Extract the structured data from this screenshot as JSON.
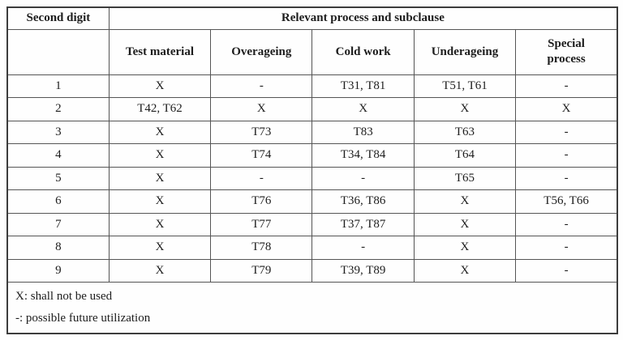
{
  "table": {
    "corner_header": "Second digit",
    "group_header": "Relevant process and subclause",
    "columns": [
      "Test material",
      "Overageing",
      "Cold work",
      "Underageing",
      "Special process"
    ],
    "rows": [
      {
        "digit": "1",
        "cells": [
          "X",
          "-",
          "T31, T81",
          "T51, T61",
          "-"
        ]
      },
      {
        "digit": "2",
        "cells": [
          "T42, T62",
          "X",
          "X",
          "X",
          "X"
        ]
      },
      {
        "digit": "3",
        "cells": [
          "X",
          "T73",
          "T83",
          "T63",
          "-"
        ]
      },
      {
        "digit": "4",
        "cells": [
          "X",
          "T74",
          "T34, T84",
          "T64",
          "-"
        ]
      },
      {
        "digit": "5",
        "cells": [
          "X",
          "-",
          "-",
          "T65",
          "-"
        ]
      },
      {
        "digit": "6",
        "cells": [
          "X",
          "T76",
          "T36, T86",
          "X",
          "T56, T66"
        ]
      },
      {
        "digit": "7",
        "cells": [
          "X",
          "T77",
          "T37, T87",
          "X",
          "-"
        ]
      },
      {
        "digit": "8",
        "cells": [
          "X",
          "T78",
          "-",
          "X",
          "-"
        ]
      },
      {
        "digit": "9",
        "cells": [
          "X",
          "T79",
          "T39, T89",
          "X",
          "-"
        ]
      }
    ],
    "legend": [
      "X: shall not be used",
      "-: possible future utilization"
    ]
  },
  "colors": {
    "background": "#fefefe",
    "border_outer": "#3c3c3c",
    "border_inner": "#555555",
    "text": "#1d1d1d"
  }
}
